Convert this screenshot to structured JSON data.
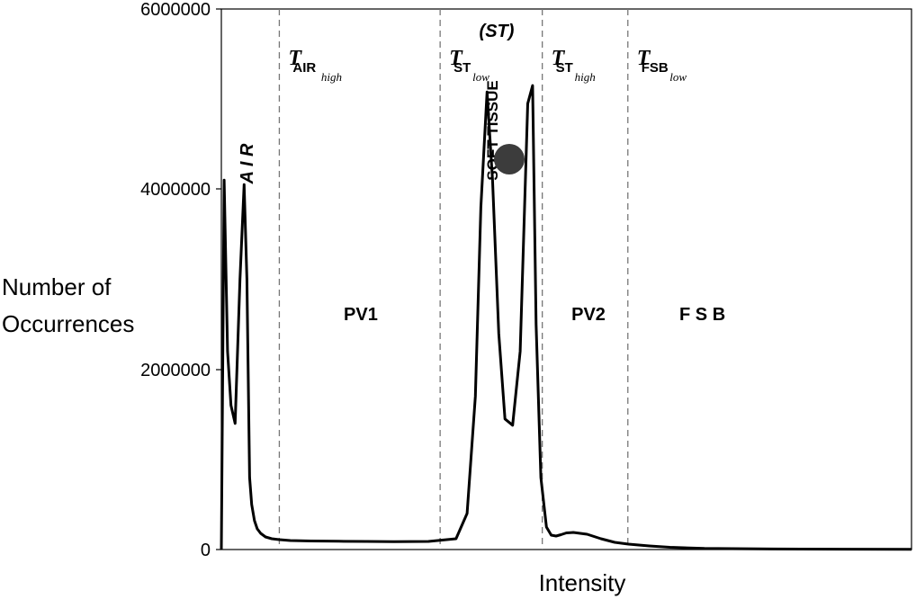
{
  "chart_data": {
    "type": "line",
    "title": "",
    "xlabel": "Intensity",
    "ylabel_lines": [
      "Number of",
      "Occurrences"
    ],
    "ylim": [
      0,
      6000000
    ],
    "yticks": [
      "0",
      "2000000",
      "4000000",
      "6000000"
    ],
    "xlim": [
      0,
      100
    ],
    "series": [
      {
        "x": [
          0,
          0.4,
          0.9,
          1.4,
          2.0,
          2.7,
          3.3,
          3.7,
          4.1,
          4.4,
          4.8,
          5.2,
          5.7,
          6.4,
          7.3,
          8.4,
          10,
          13,
          17,
          21,
          25,
          30,
          34,
          35.6,
          36.8,
          37.6,
          38.5,
          39.3,
          40.2,
          41.1,
          42.2,
          43.3,
          44.4,
          45.1,
          45.6,
          46.3,
          47.1,
          47.8,
          48.5,
          49.2,
          50.0,
          51.0,
          53.0,
          55.0,
          57.0,
          59.0,
          62.0,
          65.0,
          70,
          80,
          90,
          100
        ],
        "y": [
          0,
          4100000,
          2200000,
          1600000,
          1400000,
          3000000,
          4050000,
          3000000,
          800000,
          500000,
          320000,
          230000,
          180000,
          140000,
          120000,
          110000,
          100000,
          95000,
          92000,
          90000,
          88000,
          90000,
          120000,
          400000,
          1700000,
          3800000,
          5080000,
          4100000,
          2400000,
          1450000,
          1380000,
          2200000,
          4950000,
          5150000,
          2500000,
          800000,
          250000,
          160000,
          150000,
          165000,
          185000,
          190000,
          170000,
          120000,
          80000,
          60000,
          40000,
          25000,
          12000,
          6000,
          4000,
          3000
        ]
      }
    ],
    "thresholds": [
      {
        "x": 8.4,
        "T": "T",
        "sub": "AIR",
        "sub2": "high"
      },
      {
        "x": 31.7,
        "T": "T",
        "sub": "ST",
        "sub2": "low"
      },
      {
        "x": 46.5,
        "T": "T",
        "sub": "ST",
        "sub2": "high"
      },
      {
        "x": 58.9,
        "T": "T",
        "sub": "FSB",
        "sub2": "low"
      }
    ],
    "regions": [
      {
        "label": "PV1",
        "x": 20.2
      },
      {
        "label": "PV2",
        "x": 53.2
      },
      {
        "label": "F S B",
        "x": 69.7
      }
    ],
    "annotations": {
      "air": "A I R",
      "soft_tissue": "SOFT TISSUE",
      "st": "(ST)"
    },
    "marker_color": "#3c3c3c"
  }
}
